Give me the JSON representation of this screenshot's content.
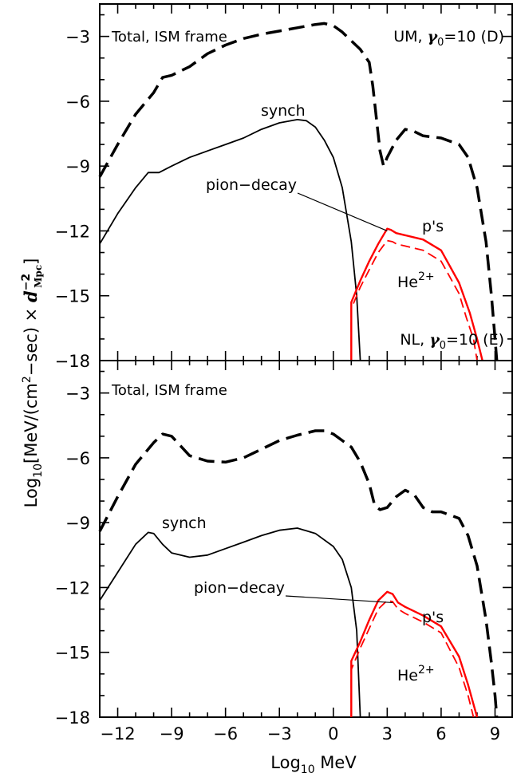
{
  "figure": {
    "ylabel": {
      "prefix": "Log",
      "prefix_sub": "10",
      "main": "[MeV/(cm",
      "sup2": "2",
      "mid": "−sec) × ",
      "d": "d",
      "dsup": "−2",
      "dsub": "Mpc",
      "end": "]"
    },
    "xlabel": {
      "prefix": "Log",
      "sub": "10",
      "rest": " MeV"
    }
  },
  "chart_data": [
    {
      "type": "line",
      "panel": "top",
      "xlim": [
        -13,
        10
      ],
      "ylim": [
        -18,
        -1.5
      ],
      "xticks": [
        -12,
        -9,
        -6,
        -3,
        0,
        3,
        6,
        9
      ],
      "xtick_labels": [
        "−12",
        "−9",
        "−6",
        "−3",
        "0",
        "3",
        "6",
        "9"
      ],
      "yticks": [
        -18,
        -15,
        -12,
        -9,
        -6,
        -3
      ],
      "ytick_labels": [
        "−18",
        "−15",
        "−12",
        "−9",
        "−6",
        "−3"
      ],
      "annotations": {
        "frame": "Total, ISM frame",
        "model_prefix": "UM, ",
        "gamma": "γ",
        "gamma_sub": "0",
        "model_suffix": "=10 (D)",
        "synch": "synch",
        "pion": "pion−decay",
        "protons": "p's",
        "helium": "He",
        "helium_sup": "2+"
      },
      "series": [
        {
          "style": "dashed-black",
          "points": [
            [
              -13,
              -9.5
            ],
            [
              -12,
              -8.0
            ],
            [
              -11,
              -6.6
            ],
            [
              -10,
              -5.6
            ],
            [
              -9.5,
              -4.9
            ],
            [
              -9,
              -4.8
            ],
            [
              -8,
              -4.4
            ],
            [
              -7,
              -3.8
            ],
            [
              -6,
              -3.4
            ],
            [
              -5,
              -3.1
            ],
            [
              -4,
              -2.9
            ],
            [
              -3,
              -2.75
            ],
            [
              -2,
              -2.6
            ],
            [
              -1,
              -2.45
            ],
            [
              -0.5,
              -2.4
            ],
            [
              0,
              -2.5
            ],
            [
              0.5,
              -2.8
            ],
            [
              1,
              -3.2
            ],
            [
              1.5,
              -3.6
            ],
            [
              2,
              -4.2
            ],
            [
              2.2,
              -5.3
            ],
            [
              2.4,
              -6.8
            ],
            [
              2.6,
              -8.3
            ],
            [
              2.8,
              -9.0
            ],
            [
              3.0,
              -8.6
            ],
            [
              3.5,
              -7.8
            ],
            [
              4,
              -7.3
            ],
            [
              4.5,
              -7.4
            ],
            [
              5,
              -7.6
            ],
            [
              6,
              -7.7
            ],
            [
              7,
              -8.0
            ],
            [
              7.5,
              -8.6
            ],
            [
              8,
              -10.0
            ],
            [
              8.5,
              -12.5
            ],
            [
              8.8,
              -15.0
            ],
            [
              9.0,
              -17.0
            ],
            [
              9.1,
              -18.0
            ]
          ]
        },
        {
          "style": "solid-black",
          "points": [
            [
              -13,
              -12.6
            ],
            [
              -12,
              -11.2
            ],
            [
              -11,
              -10.0
            ],
            [
              -10.3,
              -9.3
            ],
            [
              -9.7,
              -9.3
            ],
            [
              -9,
              -9.0
            ],
            [
              -8,
              -8.6
            ],
            [
              -7,
              -8.3
            ],
            [
              -6,
              -8.0
            ],
            [
              -5,
              -7.7
            ],
            [
              -4,
              -7.3
            ],
            [
              -3,
              -7.0
            ],
            [
              -2,
              -6.85
            ],
            [
              -1.5,
              -6.9
            ],
            [
              -1,
              -7.2
            ],
            [
              -0.5,
              -7.8
            ],
            [
              0,
              -8.6
            ],
            [
              0.5,
              -10.0
            ],
            [
              1,
              -12.5
            ],
            [
              1.3,
              -15.0
            ],
            [
              1.5,
              -18.0
            ]
          ]
        },
        {
          "style": "solid-red",
          "points": [
            [
              1.0,
              -18.0
            ],
            [
              1.0,
              -15.3
            ],
            [
              1.5,
              -14.3
            ],
            [
              2,
              -13.4
            ],
            [
              2.5,
              -12.6
            ],
            [
              3.0,
              -11.9
            ],
            [
              3.2,
              -11.95
            ],
            [
              3.5,
              -12.1
            ],
            [
              4,
              -12.2
            ],
            [
              5,
              -12.4
            ],
            [
              6,
              -12.9
            ],
            [
              7,
              -14.4
            ],
            [
              7.6,
              -15.8
            ],
            [
              8.0,
              -17.0
            ],
            [
              8.3,
              -18.0
            ]
          ]
        },
        {
          "style": "dashed-red",
          "points": [
            [
              1.0,
              -18.0
            ],
            [
              1.0,
              -15.6
            ],
            [
              1.5,
              -14.6
            ],
            [
              2,
              -13.8
            ],
            [
              2.5,
              -13.0
            ],
            [
              3.0,
              -12.45
            ],
            [
              3.3,
              -12.5
            ],
            [
              3.5,
              -12.6
            ],
            [
              4,
              -12.7
            ],
            [
              5,
              -12.9
            ],
            [
              6,
              -13.4
            ],
            [
              7,
              -14.9
            ],
            [
              7.4,
              -16.0
            ],
            [
              7.8,
              -17.0
            ],
            [
              8.0,
              -18.0
            ]
          ]
        }
      ]
    },
    {
      "type": "line",
      "panel": "bottom",
      "xlim": [
        -13,
        10
      ],
      "ylim": [
        -18,
        -1.5
      ],
      "xticks": [
        -12,
        -9,
        -6,
        -3,
        0,
        3,
        6,
        9
      ],
      "xtick_labels": [
        "−12",
        "−9",
        "−6",
        "−3",
        "0",
        "3",
        "6",
        "9"
      ],
      "yticks": [
        -18,
        -15,
        -12,
        -9,
        -6,
        -3
      ],
      "ytick_labels": [
        "−18",
        "−15",
        "−12",
        "−9",
        "−6",
        "−3"
      ],
      "annotations": {
        "frame": "Total, ISM frame",
        "model_prefix": "NL, ",
        "gamma": "γ",
        "gamma_sub": "0",
        "model_suffix": "=10 (E)",
        "synch": "synch",
        "pion": "pion−decay",
        "protons": "p's",
        "helium": "He",
        "helium_sup": "2+"
      },
      "series": [
        {
          "style": "dashed-black",
          "points": [
            [
              -13,
              -9.4
            ],
            [
              -12,
              -7.8
            ],
            [
              -11,
              -6.3
            ],
            [
              -10,
              -5.3
            ],
            [
              -9.5,
              -4.9
            ],
            [
              -9,
              -5.0
            ],
            [
              -8,
              -5.9
            ],
            [
              -7,
              -6.15
            ],
            [
              -6,
              -6.2
            ],
            [
              -5,
              -6.0
            ],
            [
              -4,
              -5.6
            ],
            [
              -3,
              -5.2
            ],
            [
              -2,
              -4.95
            ],
            [
              -1,
              -4.75
            ],
            [
              -0.5,
              -4.75
            ],
            [
              0,
              -4.9
            ],
            [
              1,
              -5.5
            ],
            [
              1.5,
              -6.2
            ],
            [
              2,
              -7.2
            ],
            [
              2.3,
              -8.2
            ],
            [
              2.6,
              -8.4
            ],
            [
              3,
              -8.3
            ],
            [
              3.5,
              -7.8
            ],
            [
              4,
              -7.5
            ],
            [
              4.5,
              -7.7
            ],
            [
              5,
              -8.3
            ],
            [
              5.5,
              -8.5
            ],
            [
              6,
              -8.5
            ],
            [
              7,
              -8.8
            ],
            [
              7.5,
              -9.6
            ],
            [
              8,
              -11.0
            ],
            [
              8.5,
              -13.5
            ],
            [
              8.8,
              -15.5
            ],
            [
              9.0,
              -17.0
            ],
            [
              9.1,
              -18.0
            ]
          ]
        },
        {
          "style": "solid-black",
          "points": [
            [
              -13,
              -12.6
            ],
            [
              -12,
              -11.3
            ],
            [
              -11,
              -10.0
            ],
            [
              -10.3,
              -9.45
            ],
            [
              -10,
              -9.5
            ],
            [
              -9.5,
              -10.0
            ],
            [
              -9,
              -10.4
            ],
            [
              -8,
              -10.6
            ],
            [
              -7,
              -10.5
            ],
            [
              -6,
              -10.2
            ],
            [
              -5,
              -9.9
            ],
            [
              -4,
              -9.6
            ],
            [
              -3,
              -9.35
            ],
            [
              -2,
              -9.25
            ],
            [
              -1,
              -9.5
            ],
            [
              0,
              -10.1
            ],
            [
              0.5,
              -10.7
            ],
            [
              1,
              -12.0
            ],
            [
              1.3,
              -14.0
            ],
            [
              1.5,
              -18.0
            ]
          ]
        },
        {
          "style": "solid-red",
          "points": [
            [
              1.0,
              -18.0
            ],
            [
              1.0,
              -15.4
            ],
            [
              1.5,
              -14.5
            ],
            [
              2,
              -13.5
            ],
            [
              2.5,
              -12.6
            ],
            [
              3.0,
              -12.2
            ],
            [
              3.3,
              -12.3
            ],
            [
              3.6,
              -12.7
            ],
            [
              4,
              -12.9
            ],
            [
              5,
              -13.3
            ],
            [
              6,
              -13.8
            ],
            [
              7,
              -15.2
            ],
            [
              7.5,
              -16.5
            ],
            [
              8.0,
              -18.0
            ]
          ]
        },
        {
          "style": "dashed-red",
          "points": [
            [
              1.0,
              -18.0
            ],
            [
              1.0,
              -15.8
            ],
            [
              1.5,
              -14.8
            ],
            [
              2,
              -13.9
            ],
            [
              2.5,
              -13.0
            ],
            [
              3.0,
              -12.6
            ],
            [
              3.3,
              -12.65
            ],
            [
              3.6,
              -13.0
            ],
            [
              4,
              -13.2
            ],
            [
              5,
              -13.6
            ],
            [
              6,
              -14.1
            ],
            [
              7,
              -15.7
            ],
            [
              7.5,
              -17.0
            ],
            [
              7.8,
              -18.0
            ]
          ]
        }
      ]
    }
  ]
}
